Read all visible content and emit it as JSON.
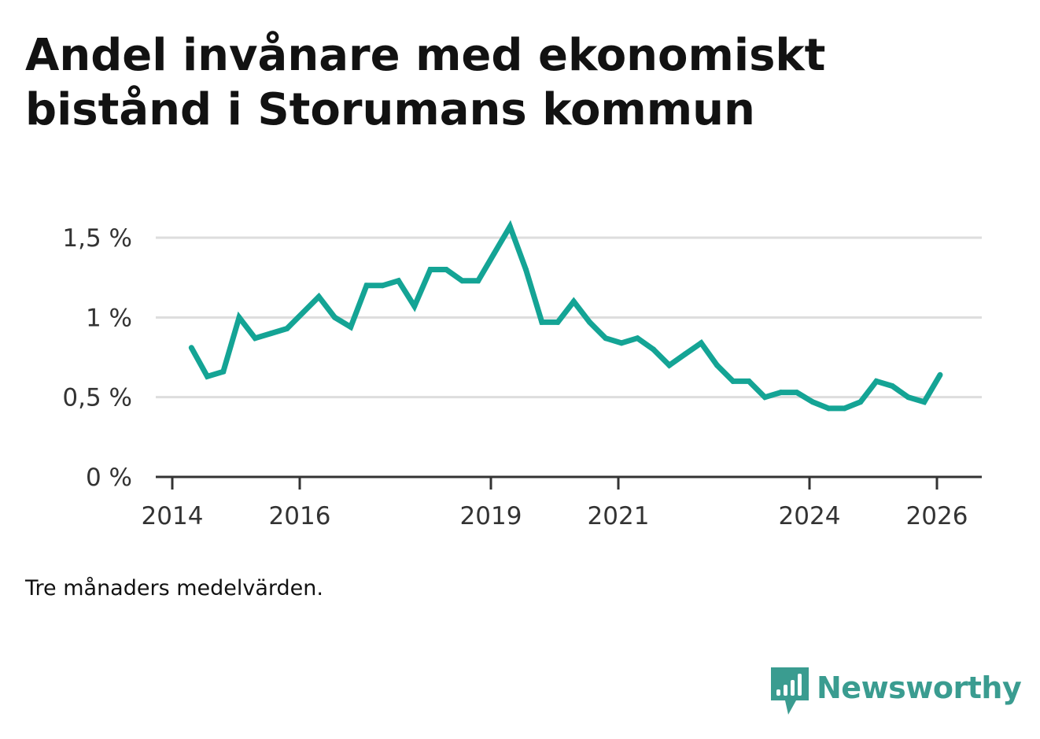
{
  "title_lines": [
    "Andel invånare med ekonomiskt",
    "bistånd i Storumans kommun"
  ],
  "note": "Tre månaders medelvärden.",
  "logo": {
    "text": "Newsworthy",
    "icon": "bar-chart-speech-bubble-icon"
  },
  "colors": {
    "line": "#14a495",
    "grid": "#dddddd",
    "axis": "#333333",
    "title": "#121212",
    "brand": "#3a9c90"
  },
  "chart_data": {
    "type": "line",
    "title": "Andel invånare med ekonomiskt bistånd i Storumans kommun",
    "xlabel": "",
    "ylabel": "",
    "x_ticks": [
      {
        "value": 2014,
        "label": "2014"
      },
      {
        "value": 2016,
        "label": "2016"
      },
      {
        "value": 2019,
        "label": "2019"
      },
      {
        "value": 2021,
        "label": "2021"
      },
      {
        "value": 2024,
        "label": "2024"
      },
      {
        "value": 2026,
        "label": "2026"
      }
    ],
    "y_ticks": [
      {
        "value": 0,
        "label": "0 %"
      },
      {
        "value": 0.5,
        "label": "0,5 %"
      },
      {
        "value": 1,
        "label": "1 %"
      },
      {
        "value": 1.5,
        "label": "1,5 %"
      }
    ],
    "xlim": [
      2013.8,
      2026.7
    ],
    "ylim": [
      0,
      1.5
    ],
    "grid": true,
    "series": [
      {
        "name": "Andel invånare med ekonomiskt bistånd",
        "x": [
          2014.3,
          2014.55,
          2014.8,
          2015.05,
          2015.3,
          2015.55,
          2015.8,
          2016.05,
          2016.3,
          2016.55,
          2016.8,
          2017.05,
          2017.3,
          2017.55,
          2017.8,
          2018.05,
          2018.3,
          2018.55,
          2018.8,
          2019.05,
          2019.3,
          2019.55,
          2019.8,
          2020.05,
          2020.3,
          2020.55,
          2020.8,
          2021.05,
          2021.3,
          2021.55,
          2021.8,
          2022.05,
          2022.3,
          2022.55,
          2022.8,
          2023.05,
          2023.3,
          2023.55,
          2023.8,
          2024.05,
          2024.3,
          2024.55,
          2024.8,
          2025.05,
          2025.3,
          2025.55,
          2025.8,
          2026.05
        ],
        "values": [
          0.81,
          0.63,
          0.66,
          1.0,
          0.87,
          0.9,
          0.93,
          1.03,
          1.13,
          1.0,
          0.94,
          1.2,
          1.2,
          1.23,
          1.07,
          1.3,
          1.3,
          1.23,
          1.23,
          1.4,
          1.57,
          1.3,
          0.97,
          0.97,
          1.1,
          0.97,
          0.87,
          0.84,
          0.87,
          0.8,
          0.7,
          0.77,
          0.84,
          0.7,
          0.6,
          0.6,
          0.5,
          0.53,
          0.53,
          0.47,
          0.43,
          0.43,
          0.47,
          0.6,
          0.57,
          0.5,
          0.47,
          0.64
        ]
      }
    ]
  }
}
